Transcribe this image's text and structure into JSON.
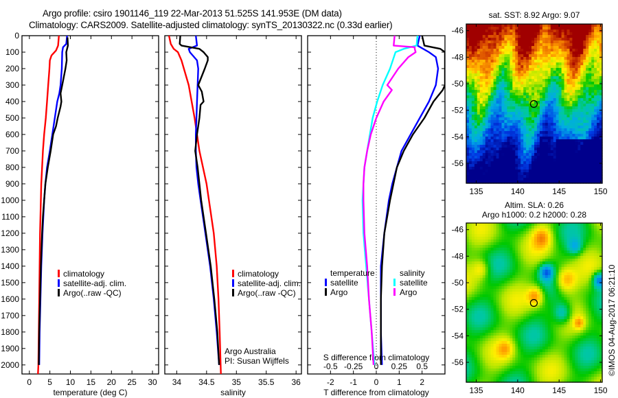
{
  "title_line1": "Argo profile: csiro 1901146_119 22-Mar-2013 51.525S 141.953E (DM data)",
  "title_line2": "Climatology: CARS2009. Satellite-adjusted climatology: synTS_20130322.nc (0.33d earlier)",
  "credit": "©IMOS 04-Aug-2017 06:21:10",
  "colors": {
    "climatology": "#ff0000",
    "satellite": "#0000ff",
    "argo": "#000000",
    "sal_satellite": "#00ffff",
    "sal_argo": "#ff00ff"
  },
  "chart_data": [
    {
      "name": "temperature-profile",
      "type": "line",
      "xlabel": "temperature (deg C)",
      "ylabel": "depth",
      "xlim": [
        -1.8,
        31.5
      ],
      "ylim": [
        2055,
        0
      ],
      "xticks": [
        0,
        5,
        10,
        15,
        20,
        25,
        30
      ],
      "yticks": [
        0,
        100,
        200,
        300,
        400,
        500,
        600,
        700,
        800,
        900,
        1000,
        1100,
        1200,
        1300,
        1400,
        1500,
        1600,
        1700,
        1800,
        1900,
        2000
      ],
      "legend": [
        "climatology",
        "satellite-adj. clim.",
        "Argo(..raw -QC)"
      ],
      "series": [
        {
          "name": "climatology",
          "color_key": "climatology",
          "depth": [
            0,
            60,
            90,
            120,
            150,
            200,
            300,
            400,
            500,
            600,
            700,
            800,
            900,
            1000,
            1100,
            1200,
            1400,
            1600,
            1800,
            2000,
            2055
          ],
          "values": [
            7.2,
            7.0,
            6.5,
            5.4,
            5.0,
            4.9,
            4.6,
            4.3,
            4.0,
            3.6,
            3.3,
            3.1,
            2.9,
            2.8,
            2.7,
            2.6,
            2.5,
            2.4,
            2.3,
            2.2,
            2.1
          ]
        },
        {
          "name": "satellite-adj. clim.",
          "color_key": "satellite",
          "depth": [
            0,
            50,
            70,
            100,
            200,
            300,
            350,
            400,
            500,
            600,
            700,
            800,
            900,
            1000,
            1100,
            1200,
            1400,
            1600,
            1800,
            2000
          ],
          "values": [
            9.2,
            9.0,
            8.2,
            8.0,
            7.9,
            7.6,
            7.3,
            6.8,
            6.2,
            5.6,
            5.0,
            4.3,
            3.9,
            3.6,
            3.4,
            3.2,
            2.9,
            2.7,
            2.5,
            2.4
          ]
        },
        {
          "name": "Argo(..raw -QC)",
          "color_key": "argo",
          "depth": [
            10,
            60,
            100,
            150,
            200,
            300,
            350,
            400,
            430,
            500,
            550,
            600,
            700,
            800,
            900,
            1000,
            1100,
            1200,
            1400,
            1600,
            1800,
            2000
          ],
          "values": [
            9.3,
            9.4,
            9.0,
            9.1,
            8.8,
            8.0,
            7.6,
            7.8,
            7.6,
            6.9,
            6.5,
            5.8,
            5.2,
            4.5,
            3.9,
            3.6,
            3.3,
            3.1,
            2.8,
            2.6,
            2.4,
            2.3
          ]
        }
      ]
    },
    {
      "name": "salinity-profile",
      "type": "line",
      "xlabel": "salinity",
      "xlim": [
        33.8,
        36.09
      ],
      "ylim": [
        2055,
        0
      ],
      "xticks": [
        34,
        34.5,
        35,
        35.5,
        36
      ],
      "xticklabels": [
        "34",
        "34.5",
        "35",
        "35.5",
        "36"
      ],
      "legend": [
        "climatology",
        "satellite-adj. clim.",
        "Argo(..raw -QC)"
      ],
      "annotation": [
        "Argo Australia",
        "PI: Susan Wijffels"
      ],
      "series": [
        {
          "name": "climatology",
          "color_key": "climatology",
          "depth": [
            0,
            50,
            80,
            100,
            150,
            200,
            300,
            400,
            500,
            600,
            700,
            800,
            900,
            1000,
            1200,
            1400,
            1600,
            1800,
            2055
          ],
          "values": [
            33.87,
            33.9,
            33.95,
            34.02,
            34.08,
            34.12,
            34.2,
            34.25,
            34.3,
            34.34,
            34.38,
            34.44,
            34.5,
            34.54,
            34.62,
            34.67,
            34.7,
            34.72,
            34.74
          ]
        },
        {
          "name": "satellite-adj. clim.",
          "color_key": "satellite",
          "depth": [
            0,
            60,
            80,
            100,
            150,
            200,
            300,
            400,
            500,
            600,
            700,
            800,
            900,
            1000,
            1200,
            1400,
            1600,
            1800,
            2000
          ],
          "values": [
            34.32,
            34.34,
            34.2,
            34.22,
            34.34,
            34.36,
            34.35,
            34.34,
            34.33,
            34.32,
            34.32,
            34.33,
            34.36,
            34.4,
            34.48,
            34.56,
            34.62,
            34.67,
            34.71
          ]
        },
        {
          "name": "Argo(..raw -QC)",
          "color_key": "argo",
          "depth": [
            0,
            50,
            60,
            80,
            100,
            130,
            150,
            200,
            300,
            340,
            400,
            420,
            500,
            600,
            700,
            800,
            900,
            1000,
            1200,
            1400,
            1600,
            1800,
            2000
          ],
          "values": [
            34.06,
            34.05,
            34.08,
            34.38,
            34.45,
            34.52,
            34.52,
            34.47,
            34.36,
            34.42,
            34.45,
            34.4,
            34.38,
            34.34,
            34.31,
            34.35,
            34.38,
            34.41,
            34.49,
            34.57,
            34.63,
            34.68,
            34.71
          ]
        }
      ]
    },
    {
      "name": "difference-profile",
      "type": "line",
      "xlabel": "T difference from climatology",
      "xlabel2": "S difference from climatology",
      "xlim": [
        -3.0,
        3.0
      ],
      "ylim": [
        2055,
        0
      ],
      "xticks": [
        -2,
        -1,
        0,
        1,
        2
      ],
      "x2ticks": [
        -0.5,
        -0.25,
        0,
        0.25,
        0.5
      ],
      "x2ticklabels": [
        "-0.5",
        "-0.25",
        "0",
        "0.25",
        "0.5"
      ],
      "x2lim": [
        -0.75,
        0.75
      ],
      "legend_temperature": {
        "title": "temperature",
        "items": [
          "satellite",
          "Argo"
        ]
      },
      "legend_salinity": {
        "title": "salinity",
        "items": [
          "satellite",
          "Argo"
        ]
      },
      "series": [
        {
          "name": "temperature satellite",
          "color_key": "satellite",
          "axis": "T",
          "depth": [
            0,
            60,
            100,
            130,
            200,
            300,
            400,
            500,
            600,
            700,
            800,
            900,
            1000,
            1200,
            1400,
            1600,
            1800,
            2000
          ],
          "values": [
            1.9,
            1.8,
            2.3,
            2.6,
            2.7,
            2.6,
            2.3,
            1.9,
            1.5,
            1.1,
            0.9,
            0.7,
            0.55,
            0.35,
            0.2,
            0.2,
            0.2,
            0.25
          ]
        },
        {
          "name": "temperature Argo",
          "color_key": "argo",
          "axis": "T",
          "depth": [
            0,
            60,
            80,
            100,
            300,
            330,
            400,
            500,
            600,
            700,
            800,
            900,
            1000,
            1200,
            1400,
            1600,
            1800,
            2000
          ],
          "values": [
            2.0,
            2.1,
            2.8,
            3.0,
            3.0,
            2.9,
            2.5,
            2.1,
            1.6,
            1.2,
            0.9,
            0.75,
            0.6,
            0.35,
            0.25,
            0.2,
            0.2,
            0.2
          ]
        },
        {
          "name": "salinity satellite",
          "color_key": "sal_satellite",
          "axis": "S",
          "depth": [
            0,
            60,
            80,
            100,
            150,
            200,
            300,
            400,
            500,
            600,
            700,
            800,
            900,
            1000,
            1200,
            1400,
            1600,
            1800,
            2000
          ],
          "values": [
            0.45,
            0.44,
            0.3,
            0.21,
            0.18,
            0.15,
            0.07,
            0.01,
            -0.04,
            -0.07,
            -0.1,
            -0.13,
            -0.14,
            -0.15,
            -0.14,
            -0.11,
            -0.08,
            -0.05,
            -0.02
          ]
        },
        {
          "name": "salinity Argo",
          "color_key": "sal_argo",
          "axis": "S",
          "depth": [
            0,
            60,
            70,
            80,
            100,
            130,
            200,
            300,
            330,
            400,
            500,
            600,
            700,
            800,
            900,
            1000,
            1200,
            1400,
            1600,
            1800,
            2000
          ],
          "values": [
            0.2,
            0.19,
            0.42,
            0.42,
            0.43,
            0.35,
            0.24,
            0.12,
            0.17,
            0.08,
            0.0,
            -0.06,
            -0.1,
            -0.13,
            -0.14,
            -0.14,
            -0.13,
            -0.1,
            -0.08,
            -0.05,
            -0.03
          ]
        }
      ]
    },
    {
      "name": "sst-map",
      "type": "heatmap",
      "title": "sat. SST: 8.92  Argo: 9.07",
      "xlim": [
        133.8,
        150.2
      ],
      "ylim": [
        -57.5,
        -45.5
      ],
      "xticks": [
        135,
        140,
        145,
        150
      ],
      "yticks": [
        -46,
        -48,
        -50,
        -52,
        -54,
        -56
      ],
      "marker": {
        "lon": 141.953,
        "lat": -51.525
      }
    },
    {
      "name": "sla-map",
      "type": "heatmap",
      "title_line1": "Altim. SLA: 0.26",
      "title_line2": "Argo h1000: 0.2 h2000: 0.28",
      "xlim": [
        133.8,
        150.2
      ],
      "ylim": [
        -57.5,
        -45.5
      ],
      "xticks": [
        135,
        140,
        145,
        150
      ],
      "yticks": [
        -46,
        -48,
        -50,
        -52,
        -54,
        -56
      ],
      "marker": {
        "lon": 141.953,
        "lat": -51.525
      }
    }
  ]
}
